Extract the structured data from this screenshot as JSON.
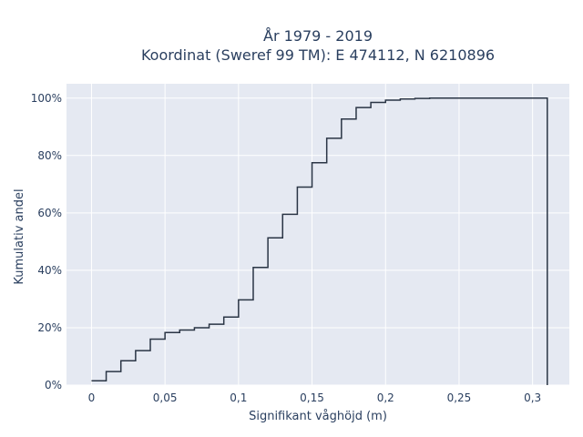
{
  "chart_data": {
    "type": "line",
    "line_shape": "step",
    "title_lines": [
      "År 1979 - 2019",
      "Koordinat (Sweref 99 TM): E 474112, N 6210896"
    ],
    "xlabel": "Signifikant våghöjd (m)",
    "ylabel": "Kumulativ andel",
    "xlim": [
      -0.017,
      0.325
    ],
    "ylim": [
      0,
      1.05
    ],
    "x_ticks": [
      0,
      0.05,
      0.1,
      0.15,
      0.2,
      0.25,
      0.3
    ],
    "x_tick_labels": [
      "0",
      "0,05",
      "0,1",
      "0,15",
      "0,2",
      "0,25",
      "0,3"
    ],
    "y_ticks": [
      0,
      0.2,
      0.4,
      0.6,
      0.8,
      1.0
    ],
    "y_tick_labels": [
      "0%",
      "20%",
      "40%",
      "60%",
      "80%",
      "100%"
    ],
    "grid": true,
    "background_color": "#e5e9f2",
    "line_color": "#2a3545",
    "series": [
      {
        "x": [
          0,
          0.01,
          0.02,
          0.03,
          0.04,
          0.05,
          0.06,
          0.07,
          0.08,
          0.09,
          0.1,
          0.11,
          0.12,
          0.13,
          0.14,
          0.15,
          0.16,
          0.17,
          0.18,
          0.19,
          0.2,
          0.21,
          0.22,
          0.23,
          0.24,
          0.25,
          0.31,
          0.31
        ],
        "y": [
          0.015,
          0.047,
          0.085,
          0.12,
          0.16,
          0.183,
          0.192,
          0.2,
          0.212,
          0.237,
          0.297,
          0.41,
          0.513,
          0.595,
          0.69,
          0.775,
          0.86,
          0.927,
          0.967,
          0.985,
          0.993,
          0.997,
          0.999,
          1.0,
          1.0,
          1.0,
          1.0,
          0
        ]
      }
    ]
  }
}
